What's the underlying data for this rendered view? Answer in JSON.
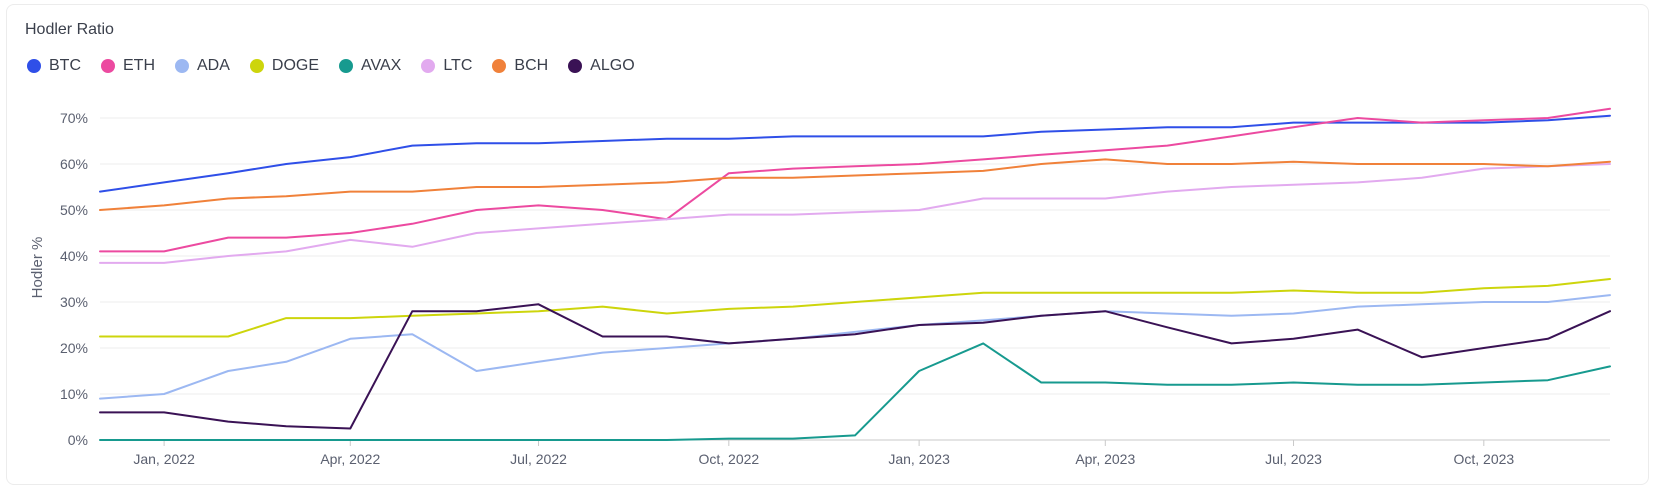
{
  "chart_data": {
    "type": "line",
    "title": "Hodler Ratio",
    "ylabel": "Hodler %",
    "ylim": [
      0,
      75
    ],
    "yticks": [
      "0%",
      "10%",
      "20%",
      "30%",
      "40%",
      "50%",
      "60%",
      "70%"
    ],
    "xticks": [
      "Jan, 2022",
      "Apr, 2022",
      "Jul, 2022",
      "Oct, 2022",
      "Jan, 2023",
      "Apr, 2023",
      "Jul, 2023",
      "Oct, 2023"
    ],
    "x": [
      "2021-12-01",
      "2022-01-01",
      "2022-02-01",
      "2022-03-01",
      "2022-04-01",
      "2022-05-01",
      "2022-06-01",
      "2022-07-01",
      "2022-08-01",
      "2022-09-01",
      "2022-10-01",
      "2022-11-01",
      "2022-12-01",
      "2023-01-01",
      "2023-02-01",
      "2023-03-01",
      "2023-04-01",
      "2023-05-01",
      "2023-06-01",
      "2023-07-01",
      "2023-08-01",
      "2023-09-01",
      "2023-10-01",
      "2023-11-01",
      "2023-12-01"
    ],
    "grid": true,
    "legend_position": "top-left",
    "series": [
      {
        "name": "BTC",
        "color": "#2f4fe8",
        "values": [
          54,
          56,
          58,
          60,
          61.5,
          64,
          64.5,
          64.5,
          65,
          65.5,
          65.5,
          66,
          66,
          66,
          66,
          67,
          67.5,
          68,
          68,
          69,
          69,
          69,
          69,
          69.5,
          70.5
        ]
      },
      {
        "name": "ETH",
        "color": "#ec4aa0",
        "values": [
          41,
          41,
          44,
          44,
          45,
          47,
          50,
          51,
          50,
          48,
          58,
          59,
          59.5,
          60,
          61,
          62,
          63,
          64,
          66,
          68,
          70,
          69,
          69.5,
          70,
          72
        ]
      },
      {
        "name": "ADA",
        "color": "#9cb8f2",
        "values": [
          9,
          10,
          15,
          17,
          22,
          23,
          15,
          17,
          19,
          20,
          21,
          22,
          23.5,
          25,
          26,
          27,
          28,
          27.5,
          27,
          27.5,
          29,
          29.5,
          30,
          30,
          31.5
        ]
      },
      {
        "name": "DOGE",
        "color": "#cdd50c",
        "values": [
          22.5,
          22.5,
          22.5,
          26.5,
          26.5,
          27,
          27.5,
          28,
          29,
          27.5,
          28.5,
          29,
          30,
          31,
          32,
          32,
          32,
          32,
          32,
          32.5,
          32,
          32,
          33,
          33.5,
          35
        ]
      },
      {
        "name": "AVAX",
        "color": "#179a8f",
        "values": [
          0,
          0,
          0,
          0,
          0,
          0,
          0,
          0,
          0,
          0,
          0.3,
          0.3,
          1,
          15,
          21,
          12.5,
          12.5,
          12,
          12,
          12.5,
          12,
          12,
          12.5,
          13,
          16
        ]
      },
      {
        "name": "LTC",
        "color": "#e2aaef",
        "values": [
          38.5,
          38.5,
          40,
          41,
          43.5,
          42,
          45,
          46,
          47,
          48,
          49,
          49,
          49.5,
          50,
          52.5,
          52.5,
          52.5,
          54,
          55,
          55.5,
          56,
          57,
          59,
          59.5,
          60
        ]
      },
      {
        "name": "BCH",
        "color": "#f0813a",
        "values": [
          50,
          51,
          52.5,
          53,
          54,
          54,
          55,
          55,
          55.5,
          56,
          57,
          57,
          57.5,
          58,
          58.5,
          60,
          61,
          60,
          60,
          60.5,
          60,
          60,
          60,
          59.5,
          60.5
        ]
      },
      {
        "name": "ALGO",
        "color": "#3a1255",
        "values": [
          6,
          6,
          4,
          3,
          2.5,
          28,
          28,
          29.5,
          22.5,
          22.5,
          21,
          22,
          23,
          25,
          25.5,
          27,
          28,
          24.5,
          21,
          22,
          24,
          18,
          20,
          22,
          28
        ]
      }
    ]
  }
}
